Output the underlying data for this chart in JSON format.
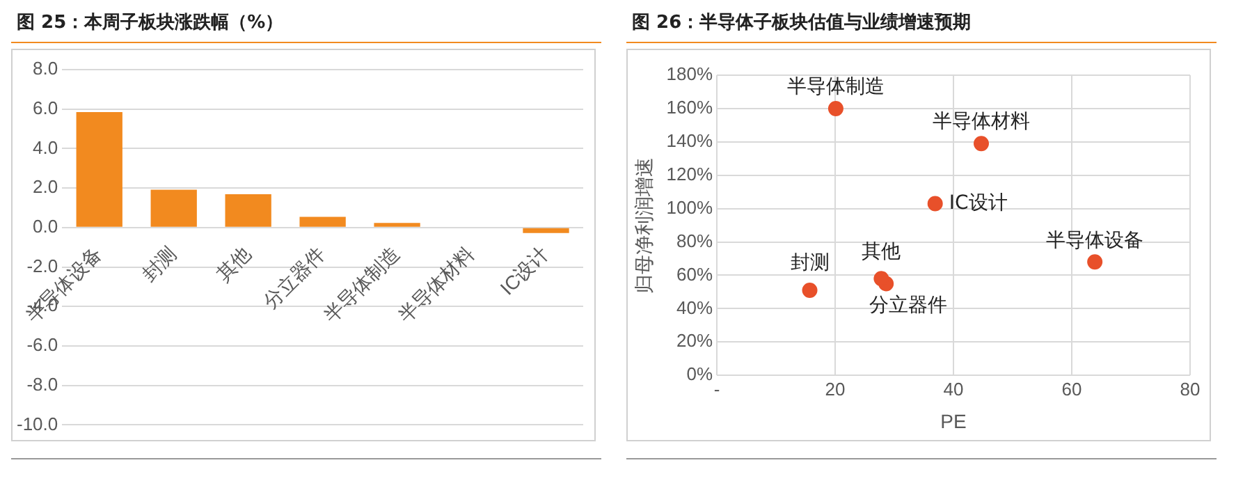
{
  "chart_data": [
    {
      "type": "bar",
      "title": "图 25：本周子板块涨跌幅（%）",
      "categories": [
        "半导体设备",
        "封测",
        "其他",
        "分立器件",
        "半导体制造",
        "半导体材料",
        "IC设计"
      ],
      "values": [
        5.85,
        1.92,
        1.69,
        0.54,
        0.23,
        0,
        -0.28
      ],
      "color": "#f28a1f",
      "ylim": [
        -10,
        8
      ],
      "yticks": [
        {
          "value": -10,
          "label": "-10.0"
        },
        {
          "value": -8,
          "label": "-8.0"
        },
        {
          "value": -6,
          "label": "-6.0"
        },
        {
          "value": -4,
          "label": "-4.0"
        },
        {
          "value": -2,
          "label": "-2.0"
        },
        {
          "value": 0,
          "label": "0.0"
        },
        {
          "value": 2,
          "label": "2.0"
        },
        {
          "value": 4,
          "label": "4.0"
        },
        {
          "value": 6,
          "label": "6.0"
        },
        {
          "value": 8,
          "label": "8.0"
        }
      ],
      "grid": "y",
      "legend": false
    },
    {
      "type": "scatter",
      "title": "图 26：半导体子板块估值与业绩增速预期",
      "xlabel": "PE",
      "ylabel": "归母净利润增速",
      "series": [
        {
          "name": "半导体设备",
          "color": "#e8502a",
          "x": [
            63.9
          ],
          "values": [
            68
          ]
        },
        {
          "name": "封测",
          "color": "#e8502a",
          "x": [
            15.7
          ],
          "values": [
            51
          ]
        },
        {
          "name": "其他",
          "color": "#e8502a",
          "x": [
            27.8
          ],
          "values": [
            58
          ]
        },
        {
          "name": "分立器件",
          "color": "#e8502a",
          "x": [
            28.6
          ],
          "values": [
            55
          ]
        },
        {
          "name": "半导体制造",
          "color": "#e8502a",
          "x": [
            20.1
          ],
          "values": [
            160
          ]
        },
        {
          "name": "半导体材料",
          "color": "#e8502a",
          "x": [
            44.7
          ],
          "values": [
            139
          ]
        },
        {
          "name": "IC设计",
          "color": "#e8502a",
          "x": [
            36.9
          ],
          "values": [
            103
          ]
        }
      ],
      "xlim": [
        0,
        80
      ],
      "xticks": [
        {
          "value": 0,
          "label": "-"
        },
        20,
        40,
        60,
        80
      ],
      "ylim": [
        0,
        180
      ],
      "yticks": [
        {
          "value": 0,
          "label": "0%"
        },
        {
          "value": 20,
          "label": "20%"
        },
        {
          "value": 40,
          "label": "40%"
        },
        {
          "value": 60,
          "label": "60%"
        },
        {
          "value": 80,
          "label": "80%"
        },
        {
          "value": 100,
          "label": "100%"
        },
        {
          "value": 120,
          "label": "120%"
        },
        {
          "value": 140,
          "label": "140%"
        },
        {
          "value": 160,
          "label": "160%"
        },
        {
          "value": 180,
          "label": "180%"
        }
      ],
      "grid": true,
      "legend": false,
      "marker": "circle"
    }
  ]
}
